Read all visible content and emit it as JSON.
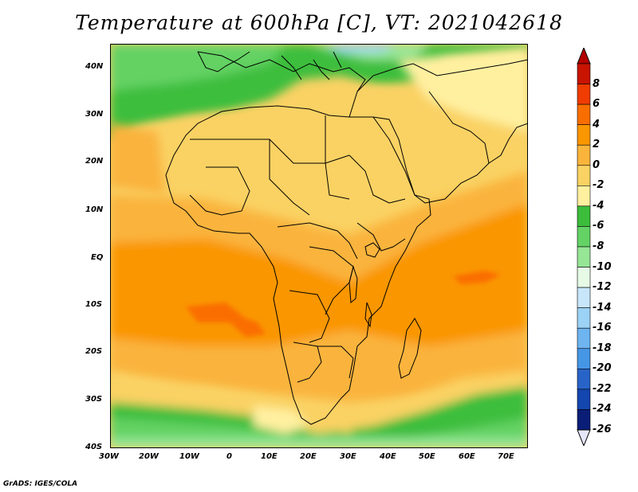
{
  "title": "Temperature at 600hPa [C], VT: 2021042618",
  "credit": "GrADS: IGES/COLA",
  "latitude_labels": [
    "40N",
    "30N",
    "20N",
    "10N",
    "EQ",
    "10S",
    "20S",
    "30S",
    "40S"
  ],
  "longitude_labels": [
    "30W",
    "20W",
    "10W",
    "0",
    "10E",
    "20E",
    "30E",
    "40E",
    "50E",
    "60E",
    "70E"
  ],
  "colorbar": {
    "labels": [
      "8",
      "6",
      "4",
      "2",
      "0",
      "-2",
      "-4",
      "-6",
      "-8",
      "-10",
      "-12",
      "-14",
      "-16",
      "-18",
      "-20",
      "-22",
      "-24",
      "-26"
    ],
    "colors": [
      "#c81400",
      "#f03c00",
      "#fa6e00",
      "#fa9600",
      "#fab43c",
      "#fad264",
      "#fff0a0",
      "#3cbe3c",
      "#64d264",
      "#96e696",
      "#e6fae6",
      "#c8e6fa",
      "#9bd2f5",
      "#6eb4f0",
      "#4696e6",
      "#2864c8",
      "#1446af",
      "#0a1e78"
    ],
    "top_arrow_color": "#b40000",
    "bottom_arrow_color": "#e6e6fa"
  }
}
